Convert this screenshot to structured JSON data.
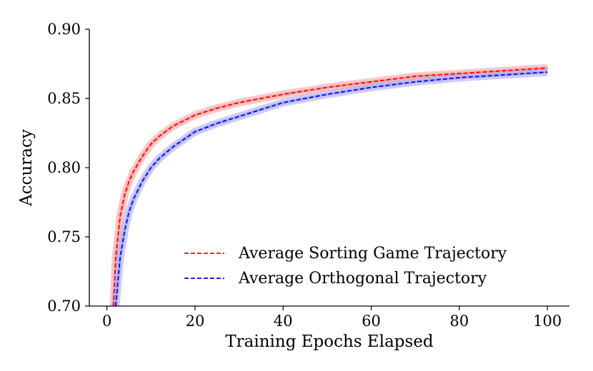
{
  "chart_data": {
    "type": "line",
    "xlabel": "Training Epochs Elapsed",
    "ylabel": "Accuracy",
    "xlim": [
      -4,
      105
    ],
    "ylim": [
      0.7,
      0.9
    ],
    "xticks": [
      0,
      20,
      40,
      60,
      80,
      100
    ],
    "xtick_labels": [
      "0",
      "20",
      "40",
      "60",
      "80",
      "100"
    ],
    "yticks": [
      0.7,
      0.75,
      0.8,
      0.85,
      0.9
    ],
    "ytick_labels": [
      "0.70",
      "0.75",
      "0.80",
      "0.85",
      "0.90"
    ],
    "grid": false,
    "legend_position": "lower-right",
    "series": [
      {
        "name": "Average Sorting Game Trajectory",
        "color": "#ff0000",
        "band_color": "#f4a0a0",
        "linestyle": "dashed",
        "x": [
          1.5,
          2,
          3,
          4,
          5,
          6,
          8,
          10,
          12,
          15,
          20,
          25,
          30,
          40,
          50,
          60,
          70,
          80,
          90,
          100
        ],
        "y": [
          0.7,
          0.735,
          0.765,
          0.78,
          0.79,
          0.797,
          0.808,
          0.817,
          0.823,
          0.83,
          0.838,
          0.843,
          0.847,
          0.853,
          0.858,
          0.862,
          0.866,
          0.868,
          0.87,
          0.872
        ]
      },
      {
        "name": "Average Orthogonal Trajectory",
        "color": "#0000ff",
        "band_color": "#a6a6ee",
        "linestyle": "dashed",
        "x": [
          2,
          2.5,
          3,
          4,
          5,
          6,
          8,
          10,
          12,
          15,
          20,
          25,
          30,
          40,
          50,
          60,
          70,
          80,
          90,
          100
        ],
        "y": [
          0.7,
          0.718,
          0.735,
          0.754,
          0.768,
          0.777,
          0.79,
          0.8,
          0.807,
          0.815,
          0.826,
          0.832,
          0.837,
          0.847,
          0.853,
          0.858,
          0.862,
          0.865,
          0.867,
          0.869
        ]
      }
    ]
  }
}
